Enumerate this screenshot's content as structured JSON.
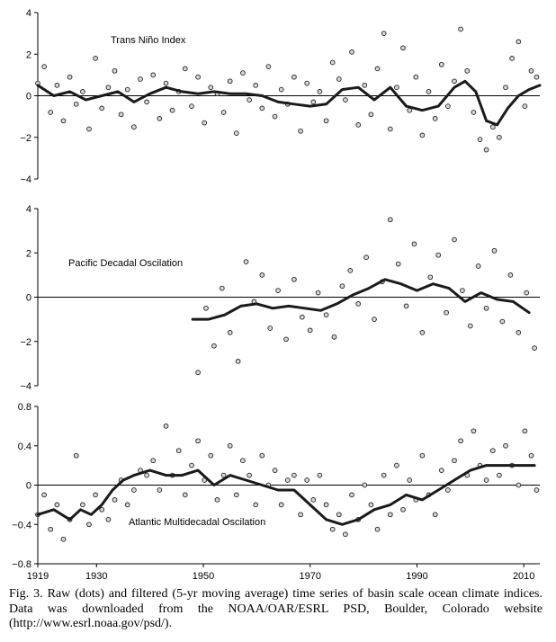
{
  "chart_data": [
    {
      "type": "scatter",
      "title": "Trans Niño Index",
      "ylim": [
        -4,
        4
      ],
      "yticks": [
        "4",
        "2",
        "0",
        "−2",
        "−4"
      ],
      "ytick_values": [
        4,
        2,
        0,
        -2,
        -4
      ],
      "xlim": [
        1919,
        2013
      ],
      "series": [
        {
          "name": "raw",
          "style": "dots",
          "x": [
            1919.0,
            1920.2,
            1921.4,
            1922.6,
            1923.8,
            1925.0,
            1926.2,
            1927.4,
            1928.6,
            1929.8,
            1931.0,
            1932.2,
            1933.4,
            1934.6,
            1935.8,
            1937.0,
            1938.2,
            1939.4,
            1940.6,
            1941.8,
            1943.0,
            1944.2,
            1945.4,
            1946.6,
            1947.8,
            1949.0,
            1950.2,
            1951.4,
            1952.6,
            1953.8,
            1955.0,
            1956.2,
            1957.4,
            1958.6,
            1959.8,
            1961.0,
            1962.2,
            1963.4,
            1964.6,
            1965.8,
            1967.0,
            1968.2,
            1969.4,
            1970.6,
            1971.8,
            1973.0,
            1974.2,
            1975.4,
            1976.6,
            1977.8,
            1979.0,
            1980.2,
            1981.4,
            1982.6,
            1983.8,
            1985.0,
            1986.2,
            1987.4,
            1988.6,
            1989.8,
            1991.0,
            1992.2,
            1993.4,
            1994.6,
            1995.8,
            1997.0,
            1998.2,
            1999.4,
            2000.6,
            2001.8,
            2003.0,
            2004.2,
            2005.4,
            2006.6,
            2007.8,
            2009.0,
            2010.2,
            2011.4,
            2012.4
          ],
          "y": [
            0.6,
            1.4,
            -0.8,
            0.5,
            -1.2,
            0.9,
            -0.4,
            0.2,
            -1.6,
            1.8,
            -0.6,
            0.4,
            1.2,
            -0.9,
            0.3,
            -1.5,
            0.8,
            -0.3,
            1.0,
            -1.1,
            0.6,
            -0.7,
            0.2,
            1.3,
            -0.5,
            0.9,
            -1.3,
            0.4,
            0.1,
            -0.8,
            0.7,
            -1.8,
            1.1,
            -0.2,
            0.5,
            -0.6,
            1.4,
            -1.0,
            0.3,
            -0.4,
            0.9,
            -1.7,
            0.6,
            -0.3,
            0.2,
            -1.2,
            1.6,
            0.8,
            -0.2,
            2.1,
            -1.4,
            0.5,
            -0.9,
            1.3,
            3.0,
            -1.6,
            0.4,
            2.3,
            -0.7,
            0.9,
            -1.9,
            0.2,
            -1.1,
            1.5,
            -0.5,
            0.7,
            3.2,
            1.2,
            -0.8,
            -2.1,
            -2.6,
            -1.5,
            -2.0,
            0.4,
            1.8,
            2.6,
            -0.5,
            1.2,
            0.9
          ]
        },
        {
          "name": "5-yr moving average",
          "style": "line",
          "x": [
            1919,
            1922,
            1925,
            1928,
            1931,
            1934,
            1937,
            1940,
            1943,
            1946,
            1949,
            1952,
            1955,
            1958,
            1961,
            1964,
            1967,
            1970,
            1973,
            1976,
            1979,
            1982,
            1985,
            1988,
            1991,
            1994,
            1997,
            1999,
            2001,
            2003,
            2005,
            2007,
            2009,
            2011,
            2013
          ],
          "y": [
            0.5,
            0.0,
            0.2,
            -0.2,
            0.0,
            0.2,
            -0.3,
            0.1,
            0.4,
            0.2,
            0.1,
            0.2,
            0.1,
            0.1,
            0.0,
            -0.3,
            -0.4,
            -0.5,
            -0.4,
            0.3,
            0.4,
            -0.2,
            0.4,
            -0.5,
            -0.7,
            -0.5,
            0.4,
            0.7,
            0.2,
            -1.2,
            -1.4,
            -0.6,
            0.0,
            0.3,
            0.5
          ]
        }
      ]
    },
    {
      "type": "scatter",
      "title": "Pacific Decadal Oscilation",
      "ylim": [
        -4,
        4
      ],
      "yticks": [
        "4",
        "2",
        "0",
        "−2",
        "−4"
      ],
      "ytick_values": [
        4,
        2,
        0,
        -2,
        -4
      ],
      "xlim": [
        1919,
        2013
      ],
      "series": [
        {
          "name": "raw",
          "style": "dots",
          "x": [
            1949.0,
            1950.5,
            1952.0,
            1953.5,
            1955.0,
            1956.5,
            1958.0,
            1959.5,
            1961.0,
            1962.5,
            1964.0,
            1965.5,
            1967.0,
            1968.5,
            1970.0,
            1971.5,
            1973.0,
            1974.5,
            1976.0,
            1977.5,
            1979.0,
            1980.5,
            1982.0,
            1983.5,
            1985.0,
            1986.5,
            1988.0,
            1989.5,
            1991.0,
            1992.5,
            1994.0,
            1995.5,
            1997.0,
            1998.5,
            2000.0,
            2001.5,
            2003.0,
            2004.5,
            2006.0,
            2007.5,
            2009.0,
            2010.5,
            2012.0
          ],
          "y": [
            -3.4,
            -0.5,
            -2.2,
            0.4,
            -1.6,
            -2.9,
            1.6,
            -0.2,
            1.0,
            -1.4,
            0.3,
            -1.9,
            0.8,
            -0.9,
            -1.5,
            0.2,
            -0.8,
            -1.8,
            0.5,
            1.2,
            -0.3,
            1.8,
            -1.0,
            0.7,
            3.5,
            1.5,
            -0.4,
            2.4,
            -1.6,
            0.9,
            1.9,
            -0.7,
            2.6,
            0.3,
            -1.3,
            1.4,
            -0.5,
            2.1,
            -1.1,
            1.0,
            -1.6,
            0.2,
            -2.3
          ]
        },
        {
          "name": "5-yr moving average",
          "style": "line",
          "x": [
            1948,
            1951,
            1954,
            1957,
            1960,
            1963,
            1966,
            1969,
            1972,
            1975,
            1978,
            1981,
            1984,
            1987,
            1990,
            1993,
            1996,
            1999,
            2002,
            2005,
            2008,
            2011
          ],
          "y": [
            -1.0,
            -1.0,
            -0.8,
            -0.4,
            -0.3,
            -0.5,
            -0.4,
            -0.5,
            -0.6,
            -0.3,
            0.1,
            0.4,
            0.8,
            0.6,
            0.3,
            0.6,
            0.4,
            -0.2,
            0.2,
            -0.1,
            -0.2,
            -0.7
          ]
        }
      ]
    },
    {
      "type": "scatter",
      "title": "Atlantic Multidecadal Oscilation",
      "ylim": [
        -0.8,
        0.8
      ],
      "yticks": [
        "0.8",
        "0.4",
        "0",
        "−0.4",
        "−0.8"
      ],
      "ytick_values": [
        0.8,
        0.4,
        0,
        -0.4,
        -0.8
      ],
      "xlim": [
        1919,
        2013
      ],
      "xticks": [
        "1919",
        "1930",
        "1950",
        "1970",
        "1990",
        "2010"
      ],
      "xtick_values": [
        1919,
        1930,
        1950,
        1970,
        1990,
        2010
      ],
      "series": [
        {
          "name": "raw",
          "style": "dots",
          "x": [
            1919.0,
            1920.2,
            1921.4,
            1922.6,
            1923.8,
            1925.0,
            1926.2,
            1927.4,
            1928.6,
            1929.8,
            1931.0,
            1932.2,
            1933.4,
            1934.6,
            1935.8,
            1937.0,
            1938.2,
            1939.4,
            1940.6,
            1941.8,
            1943.0,
            1944.2,
            1945.4,
            1946.6,
            1947.8,
            1949.0,
            1950.2,
            1951.4,
            1952.6,
            1953.8,
            1955.0,
            1956.2,
            1957.4,
            1958.6,
            1959.8,
            1961.0,
            1962.2,
            1963.4,
            1964.6,
            1965.8,
            1967.0,
            1968.2,
            1969.4,
            1970.6,
            1971.8,
            1973.0,
            1974.2,
            1975.4,
            1976.6,
            1977.8,
            1979.0,
            1980.2,
            1981.4,
            1982.6,
            1983.8,
            1985.0,
            1986.2,
            1987.4,
            1988.6,
            1989.8,
            1991.0,
            1992.2,
            1993.4,
            1994.6,
            1995.8,
            1997.0,
            1998.2,
            1999.4,
            2000.6,
            2001.8,
            2003.0,
            2004.2,
            2005.4,
            2006.6,
            2007.8,
            2009.0,
            2010.2,
            2011.4,
            2012.4
          ],
          "y": [
            -0.3,
            -0.1,
            -0.45,
            -0.2,
            -0.55,
            -0.35,
            0.3,
            -0.2,
            -0.4,
            -0.1,
            -0.25,
            -0.35,
            -0.15,
            0.05,
            -0.2,
            -0.05,
            0.15,
            0.1,
            0.25,
            -0.05,
            0.6,
            0.1,
            0.35,
            -0.1,
            0.2,
            0.45,
            0.05,
            0.3,
            -0.15,
            0.1,
            0.4,
            -0.1,
            0.25,
            0.1,
            -0.2,
            0.3,
            0.0,
            0.15,
            -0.2,
            0.05,
            0.1,
            -0.3,
            0.05,
            -0.15,
            0.1,
            -0.2,
            -0.45,
            -0.3,
            -0.5,
            -0.1,
            -0.35,
            0.0,
            -0.2,
            -0.45,
            0.1,
            -0.3,
            0.2,
            -0.25,
            0.05,
            -0.15,
            0.3,
            -0.1,
            -0.3,
            0.15,
            -0.05,
            0.25,
            0.45,
            0.1,
            0.55,
            0.2,
            0.05,
            0.35,
            0.1,
            0.4,
            0.2,
            0.0,
            0.55,
            0.3,
            -0.05
          ]
        },
        {
          "name": "5-yr moving average",
          "style": "line",
          "x": [
            1919,
            1922,
            1925,
            1927,
            1929,
            1931,
            1933,
            1935,
            1937,
            1940,
            1943,
            1946,
            1949,
            1952,
            1955,
            1958,
            1961,
            1964,
            1967,
            1970,
            1973,
            1976,
            1979,
            1982,
            1985,
            1988,
            1991,
            1994,
            1997,
            2000,
            2003,
            2006,
            2009,
            2012
          ],
          "y": [
            -0.3,
            -0.25,
            -0.35,
            -0.25,
            -0.3,
            -0.2,
            -0.05,
            0.05,
            0.1,
            0.15,
            0.1,
            0.1,
            0.15,
            0.0,
            0.1,
            0.05,
            0.0,
            -0.05,
            -0.05,
            -0.2,
            -0.35,
            -0.4,
            -0.35,
            -0.25,
            -0.2,
            -0.1,
            -0.15,
            -0.05,
            0.05,
            0.15,
            0.2,
            0.2,
            0.2,
            0.2
          ]
        }
      ]
    }
  ],
  "caption": {
    "text": "Fig. 3. Raw (dots) and filtered (5-yr moving average) time series of basin scale ocean climate indices. Data was downloaded from the NOAA/OAR/ESRL PSD, Boulder, Colorado website (http://www.esrl.noaa.gov/psd/)."
  }
}
